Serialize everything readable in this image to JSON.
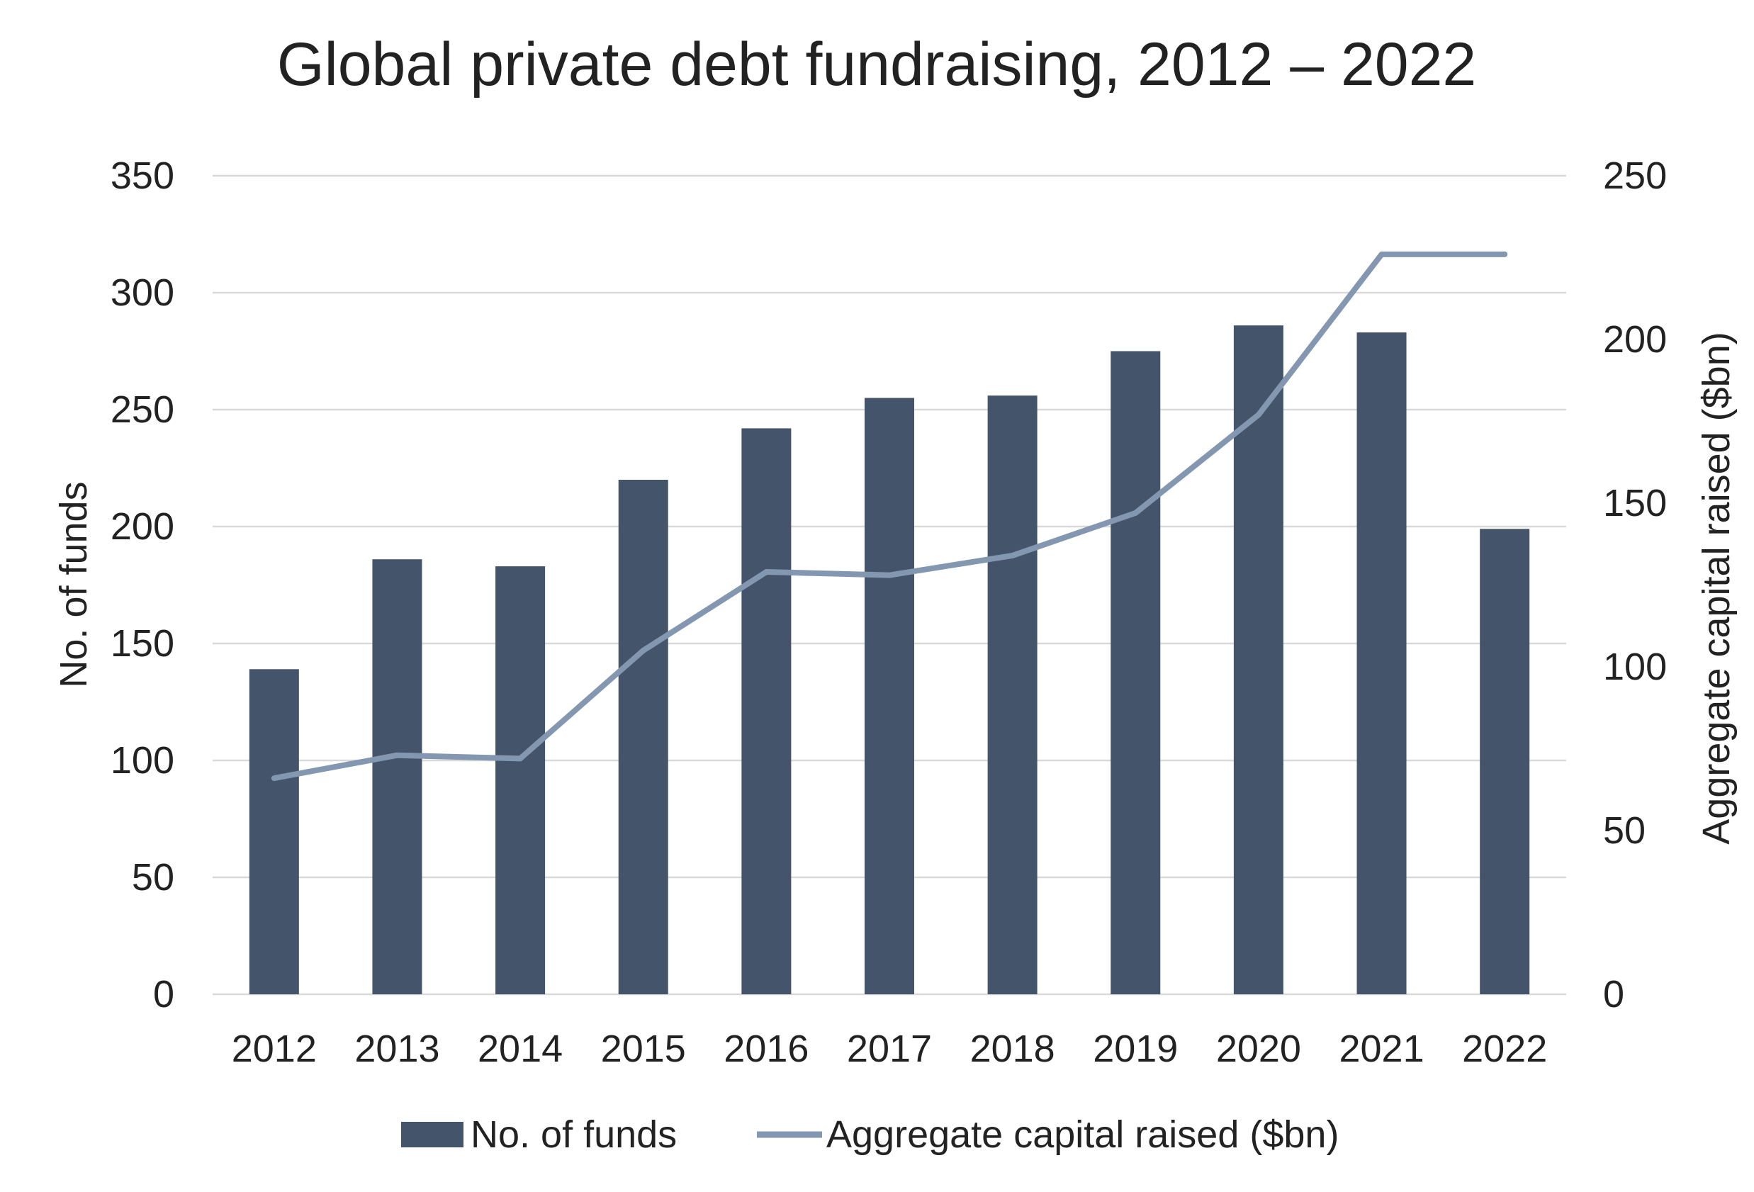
{
  "chart_data": {
    "type": "bar",
    "title": "Global private debt fundraising, 2012 – 2022",
    "categories": [
      "2012",
      "2013",
      "2014",
      "2015",
      "2016",
      "2017",
      "2018",
      "2019",
      "2020",
      "2021",
      "2022"
    ],
    "series": [
      {
        "name": "No. of funds",
        "type": "bar",
        "axis": "left",
        "values": [
          139,
          186,
          183,
          220,
          242,
          255,
          256,
          275,
          286,
          283,
          199
        ]
      },
      {
        "name": "Aggregate capital raised ($bn)",
        "type": "line",
        "axis": "right",
        "values": [
          66,
          73,
          72,
          105,
          129,
          128,
          134,
          147,
          177,
          226,
          226
        ]
      }
    ],
    "ylabel": "No. of funds",
    "y2label": "Aggregate capital raised ($bn)",
    "ylim": [
      0,
      350
    ],
    "y2lim": [
      0,
      250
    ],
    "yticks": [
      "0",
      "50",
      "100",
      "150",
      "200",
      "250",
      "300",
      "350"
    ],
    "y2ticks": [
      "0",
      "50",
      "100",
      "150",
      "200",
      "250"
    ],
    "grid": true,
    "legend": "bottom",
    "colors": {
      "bar": "#44546a",
      "line": "#8497b0",
      "grid": "#d9d9d9",
      "text": "#222222"
    }
  }
}
